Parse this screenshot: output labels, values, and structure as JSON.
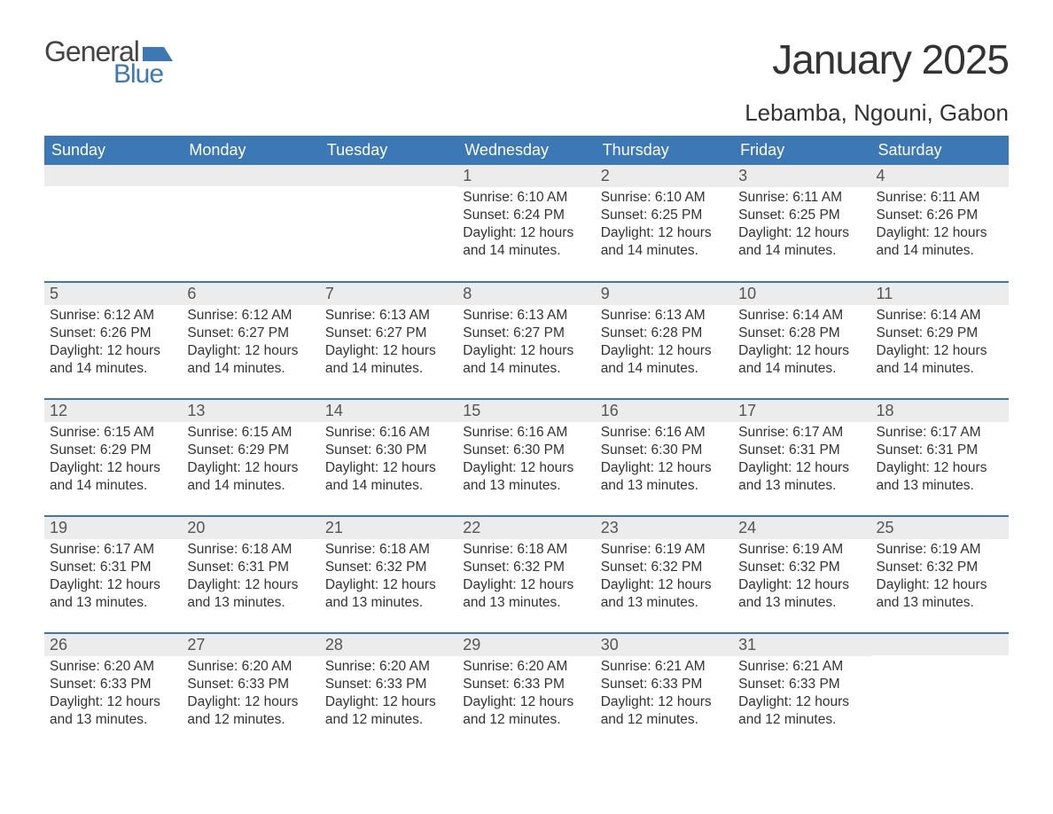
{
  "logo": {
    "text_top": "General",
    "text_bottom": "Blue",
    "flag_color": "#3b78b5"
  },
  "title": "January 2025",
  "subtitle": "Lebamba, Ngouni, Gabon",
  "colors": {
    "header_bg": "#3b78b5",
    "header_text": "#ffffff",
    "daynum_bg": "#ececec",
    "daynum_text": "#555555",
    "body_text": "#333333",
    "row_divider": "#3b78b5",
    "page_bg": "#ffffff"
  },
  "typography": {
    "title_fontsize": 46,
    "subtitle_fontsize": 26,
    "header_fontsize": 18,
    "daynum_fontsize": 18,
    "content_fontsize": 15.5,
    "font_family": "Arial"
  },
  "calendar": {
    "columns": [
      "Sunday",
      "Monday",
      "Tuesday",
      "Wednesday",
      "Thursday",
      "Friday",
      "Saturday"
    ],
    "weeks": [
      [
        null,
        null,
        null,
        {
          "num": "1",
          "sunrise": "Sunrise: 6:10 AM",
          "sunset": "Sunset: 6:24 PM",
          "daylight": "Daylight: 12 hours and 14 minutes."
        },
        {
          "num": "2",
          "sunrise": "Sunrise: 6:10 AM",
          "sunset": "Sunset: 6:25 PM",
          "daylight": "Daylight: 12 hours and 14 minutes."
        },
        {
          "num": "3",
          "sunrise": "Sunrise: 6:11 AM",
          "sunset": "Sunset: 6:25 PM",
          "daylight": "Daylight: 12 hours and 14 minutes."
        },
        {
          "num": "4",
          "sunrise": "Sunrise: 6:11 AM",
          "sunset": "Sunset: 6:26 PM",
          "daylight": "Daylight: 12 hours and 14 minutes."
        }
      ],
      [
        {
          "num": "5",
          "sunrise": "Sunrise: 6:12 AM",
          "sunset": "Sunset: 6:26 PM",
          "daylight": "Daylight: 12 hours and 14 minutes."
        },
        {
          "num": "6",
          "sunrise": "Sunrise: 6:12 AM",
          "sunset": "Sunset: 6:27 PM",
          "daylight": "Daylight: 12 hours and 14 minutes."
        },
        {
          "num": "7",
          "sunrise": "Sunrise: 6:13 AM",
          "sunset": "Sunset: 6:27 PM",
          "daylight": "Daylight: 12 hours and 14 minutes."
        },
        {
          "num": "8",
          "sunrise": "Sunrise: 6:13 AM",
          "sunset": "Sunset: 6:27 PM",
          "daylight": "Daylight: 12 hours and 14 minutes."
        },
        {
          "num": "9",
          "sunrise": "Sunrise: 6:13 AM",
          "sunset": "Sunset: 6:28 PM",
          "daylight": "Daylight: 12 hours and 14 minutes."
        },
        {
          "num": "10",
          "sunrise": "Sunrise: 6:14 AM",
          "sunset": "Sunset: 6:28 PM",
          "daylight": "Daylight: 12 hours and 14 minutes."
        },
        {
          "num": "11",
          "sunrise": "Sunrise: 6:14 AM",
          "sunset": "Sunset: 6:29 PM",
          "daylight": "Daylight: 12 hours and 14 minutes."
        }
      ],
      [
        {
          "num": "12",
          "sunrise": "Sunrise: 6:15 AM",
          "sunset": "Sunset: 6:29 PM",
          "daylight": "Daylight: 12 hours and 14 minutes."
        },
        {
          "num": "13",
          "sunrise": "Sunrise: 6:15 AM",
          "sunset": "Sunset: 6:29 PM",
          "daylight": "Daylight: 12 hours and 14 minutes."
        },
        {
          "num": "14",
          "sunrise": "Sunrise: 6:16 AM",
          "sunset": "Sunset: 6:30 PM",
          "daylight": "Daylight: 12 hours and 14 minutes."
        },
        {
          "num": "15",
          "sunrise": "Sunrise: 6:16 AM",
          "sunset": "Sunset: 6:30 PM",
          "daylight": "Daylight: 12 hours and 13 minutes."
        },
        {
          "num": "16",
          "sunrise": "Sunrise: 6:16 AM",
          "sunset": "Sunset: 6:30 PM",
          "daylight": "Daylight: 12 hours and 13 minutes."
        },
        {
          "num": "17",
          "sunrise": "Sunrise: 6:17 AM",
          "sunset": "Sunset: 6:31 PM",
          "daylight": "Daylight: 12 hours and 13 minutes."
        },
        {
          "num": "18",
          "sunrise": "Sunrise: 6:17 AM",
          "sunset": "Sunset: 6:31 PM",
          "daylight": "Daylight: 12 hours and 13 minutes."
        }
      ],
      [
        {
          "num": "19",
          "sunrise": "Sunrise: 6:17 AM",
          "sunset": "Sunset: 6:31 PM",
          "daylight": "Daylight: 12 hours and 13 minutes."
        },
        {
          "num": "20",
          "sunrise": "Sunrise: 6:18 AM",
          "sunset": "Sunset: 6:31 PM",
          "daylight": "Daylight: 12 hours and 13 minutes."
        },
        {
          "num": "21",
          "sunrise": "Sunrise: 6:18 AM",
          "sunset": "Sunset: 6:32 PM",
          "daylight": "Daylight: 12 hours and 13 minutes."
        },
        {
          "num": "22",
          "sunrise": "Sunrise: 6:18 AM",
          "sunset": "Sunset: 6:32 PM",
          "daylight": "Daylight: 12 hours and 13 minutes."
        },
        {
          "num": "23",
          "sunrise": "Sunrise: 6:19 AM",
          "sunset": "Sunset: 6:32 PM",
          "daylight": "Daylight: 12 hours and 13 minutes."
        },
        {
          "num": "24",
          "sunrise": "Sunrise: 6:19 AM",
          "sunset": "Sunset: 6:32 PM",
          "daylight": "Daylight: 12 hours and 13 minutes."
        },
        {
          "num": "25",
          "sunrise": "Sunrise: 6:19 AM",
          "sunset": "Sunset: 6:32 PM",
          "daylight": "Daylight: 12 hours and 13 minutes."
        }
      ],
      [
        {
          "num": "26",
          "sunrise": "Sunrise: 6:20 AM",
          "sunset": "Sunset: 6:33 PM",
          "daylight": "Daylight: 12 hours and 13 minutes."
        },
        {
          "num": "27",
          "sunrise": "Sunrise: 6:20 AM",
          "sunset": "Sunset: 6:33 PM",
          "daylight": "Daylight: 12 hours and 12 minutes."
        },
        {
          "num": "28",
          "sunrise": "Sunrise: 6:20 AM",
          "sunset": "Sunset: 6:33 PM",
          "daylight": "Daylight: 12 hours and 12 minutes."
        },
        {
          "num": "29",
          "sunrise": "Sunrise: 6:20 AM",
          "sunset": "Sunset: 6:33 PM",
          "daylight": "Daylight: 12 hours and 12 minutes."
        },
        {
          "num": "30",
          "sunrise": "Sunrise: 6:21 AM",
          "sunset": "Sunset: 6:33 PM",
          "daylight": "Daylight: 12 hours and 12 minutes."
        },
        {
          "num": "31",
          "sunrise": "Sunrise: 6:21 AM",
          "sunset": "Sunset: 6:33 PM",
          "daylight": "Daylight: 12 hours and 12 minutes."
        },
        null
      ]
    ]
  }
}
